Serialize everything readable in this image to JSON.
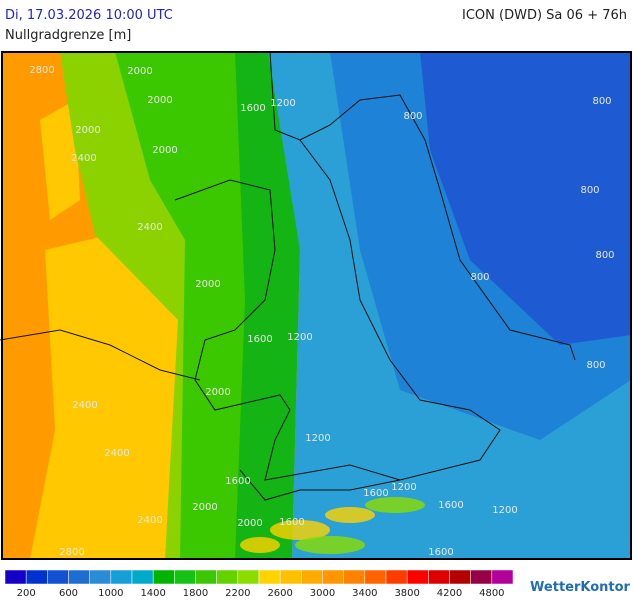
{
  "header": {
    "date": "Di, 17.03.2026 10:00 UTC",
    "model": "ICON (DWD) Sa 06 + 76h",
    "subtitle": "Nullgradgrenze [m]"
  },
  "map": {
    "contour_labels": [
      "2800",
      "2000",
      "2000",
      "2000",
      "2000",
      "2400",
      "1600",
      "1200",
      "800",
      "800",
      "800",
      "800",
      "800",
      "800",
      "2400",
      "2000",
      "1600",
      "1200",
      "2000",
      "2400",
      "2400",
      "1200",
      "1600",
      "1200",
      "1600",
      "2000",
      "1600",
      "1200",
      "2400",
      "2000",
      "1600",
      "2800",
      "1600"
    ]
  },
  "legend": {
    "colors": [
      "#1400c8",
      "#0032d2",
      "#1450d2",
      "#1e6ed2",
      "#2a8cd6",
      "#14a0d6",
      "#00aac8",
      "#00b400",
      "#14c314",
      "#3cc800",
      "#64d200",
      "#8cdc00",
      "#ffd200",
      "#ffc000",
      "#ffaa00",
      "#ff9600",
      "#ff8200",
      "#ff6400",
      "#ff3c00",
      "#ff0000",
      "#dc0000",
      "#b40000",
      "#960046",
      "#b4009b"
    ],
    "labels": [
      200,
      600,
      1000,
      1400,
      1800,
      2200,
      2600,
      3000,
      3400,
      3800,
      4200,
      4800
    ]
  },
  "logo": "WetterKontor"
}
